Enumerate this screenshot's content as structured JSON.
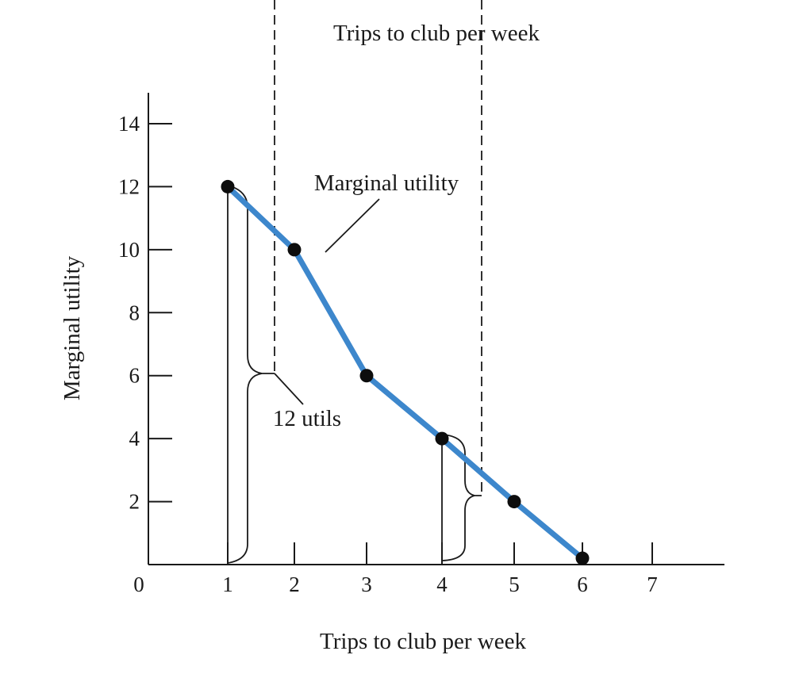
{
  "chart_data": {
    "type": "line",
    "title": "",
    "top_label": "Trips to club per week",
    "xlabel": "Trips to club per week",
    "ylabel": "Marginal utility",
    "x": [
      1,
      2,
      3,
      4,
      5,
      6
    ],
    "series": [
      {
        "name": "Marginal utility",
        "values": [
          12,
          10,
          6,
          4,
          2,
          0.2
        ],
        "color": "#3d87cc"
      }
    ],
    "xlim": [
      0,
      8
    ],
    "ylim": [
      0,
      15
    ],
    "x_origin_label": "0",
    "x_ticks": [
      "1",
      "2",
      "3",
      "4",
      "5",
      "6",
      "7"
    ],
    "y_ticks": [
      "2",
      "4",
      "6",
      "8",
      "10",
      "12",
      "14"
    ],
    "grid": false,
    "annotations": {
      "curve_label": "Marginal utility",
      "brace_label": "12 utils"
    },
    "point_color": "#0d0d0d",
    "axis_color": "#1a1a1a"
  }
}
